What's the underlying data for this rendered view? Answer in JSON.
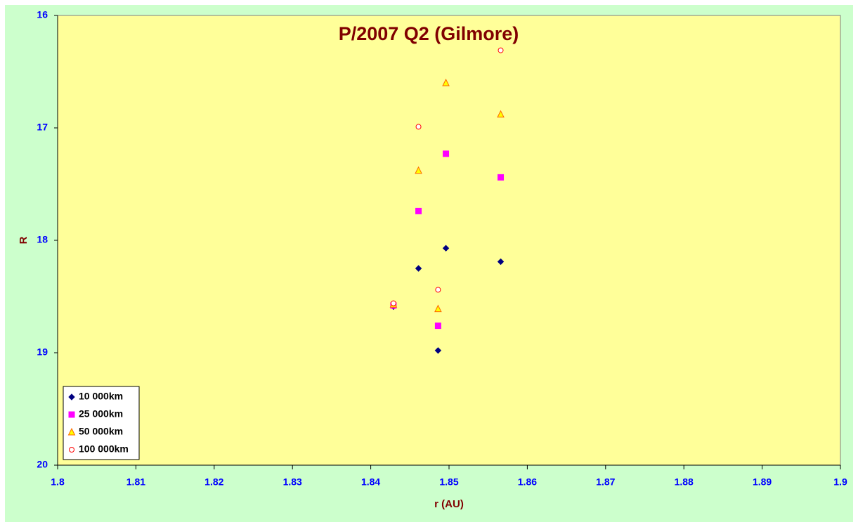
{
  "chart_data": {
    "type": "scatter",
    "title": "P/2007 Q2 (Gilmore)",
    "xlabel": "r (AU)",
    "ylabel": "R",
    "xlim": [
      1.8,
      1.9
    ],
    "xticks": [
      1.8,
      1.81,
      1.82,
      1.83,
      1.84,
      1.85,
      1.86,
      1.87,
      1.88,
      1.89,
      1.9
    ],
    "ylim": [
      16,
      20
    ],
    "yticks": [
      16,
      17,
      18,
      19,
      20
    ],
    "y_inverted": true,
    "legend": "lower left",
    "series": [
      {
        "name": "10 000km",
        "marker": "diamond",
        "color": "#000080",
        "edge": "#000080",
        "x": [
          1.8429,
          1.8461,
          1.8486,
          1.8496,
          1.8566
        ],
        "values": [
          18.59,
          18.25,
          18.98,
          18.07,
          18.19
        ]
      },
      {
        "name": "25 000km",
        "marker": "square",
        "color": "#ff00ff",
        "edge": "#ff00ff",
        "x": [
          1.8429,
          1.8461,
          1.8486,
          1.8496,
          1.8566
        ],
        "values": [
          18.58,
          17.74,
          18.76,
          17.23,
          17.44
        ]
      },
      {
        "name": "50 000km",
        "marker": "triangle",
        "color": "#ffff00",
        "edge": "#ff6600",
        "x": [
          1.8429,
          1.8461,
          1.8486,
          1.8496,
          1.8566
        ],
        "values": [
          18.57,
          17.38,
          18.61,
          16.6,
          16.88
        ]
      },
      {
        "name": "100 000km",
        "marker": "circle",
        "color": "#ffffff",
        "edge": "#ff0000",
        "x": [
          1.8429,
          1.8461,
          1.8486,
          1.8566
        ],
        "values": [
          18.56,
          16.99,
          18.44,
          16.31
        ]
      }
    ]
  }
}
